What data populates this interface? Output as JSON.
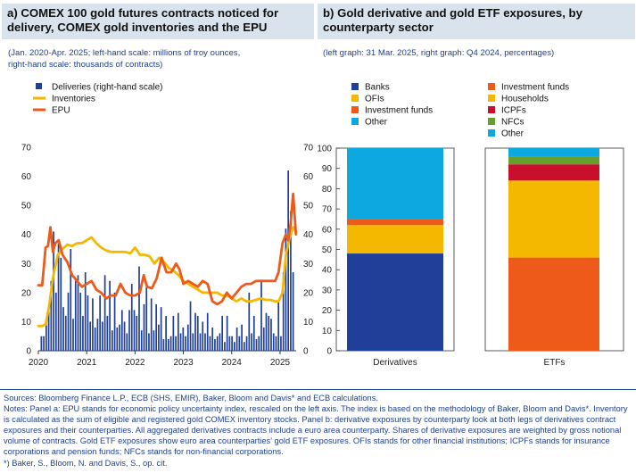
{
  "panel_a": {
    "title": "a) COMEX 100 gold futures contracts noticed for delivery, COMEX gold inventories and the EPU",
    "subtitle": "(Jan. 2020-Apr. 2025; left-hand scale: millions of troy ounces,\nright-hand scale: thousands of contracts)"
  },
  "panel_b": {
    "title": "b) Gold derivative and gold ETF exposures, by counterparty sector",
    "subtitle": "(left graph: 31 Mar. 2025, right graph: Q4 2024, percentages)"
  },
  "footer": {
    "sources": "Sources: Bloomberg Finance L.P., ECB (SHS, EMIR), Baker, Bloom and Davis* and ECB calculations.",
    "notes": "Notes: Panel a: EPU stands for economic policy uncertainty index, rescaled on the left axis. The index is based on the methodology of Baker, Bloom and Davis*. Inventory is calculated as the sum of eligible and registered gold COMEX inventory stocks. Panel b: derivative exposures by counterparty look at both legs of derivatives contract exposures and their counterparties. All aggregated derivatives contracts include a euro area counterparty. Shares of derivative exposures are weighted by gross notional volume of contracts. Gold ETF exposures show euro area counterparties' gold ETF exposures. OFIs stands for other financial institutions; ICPFs stands for insurance corporations and pension funds; NFCs stands for non-financial corporations.",
    "reference": "*) Baker, S., Bloom, N. and Davis, S., op. cit."
  },
  "chart_data": [
    {
      "type": "bar+line",
      "x_ticks": [
        "2020",
        "2021",
        "2022",
        "2023",
        "2024",
        "2025"
      ],
      "x_range": [
        2020.0,
        2025.333
      ],
      "ylim_left": [
        0,
        70
      ],
      "ylim_right": [
        0,
        70
      ],
      "y_ticks": [
        0,
        10,
        20,
        30,
        40,
        50,
        60,
        70
      ],
      "legend_position": "top-left",
      "colors": {
        "deliveries": "#1f3f99",
        "inventories": "#f5b800",
        "epu": "#ee5a1a"
      },
      "series": [
        {
          "name": "Deliveries (right-hand scale)",
          "kind": "bar",
          "axis": "right",
          "values": [
            5,
            5,
            10,
            14,
            24,
            41,
            20,
            37,
            32,
            15,
            12,
            20,
            35,
            11,
            24,
            26,
            20,
            12,
            27,
            19,
            10,
            18,
            8,
            11,
            19,
            10,
            26,
            12,
            24,
            7,
            20,
            8,
            9,
            14,
            10,
            6,
            14,
            23,
            14,
            12,
            29,
            7,
            16,
            22,
            6,
            18,
            7,
            16,
            9,
            15,
            4,
            12,
            4,
            5,
            12,
            5,
            13,
            6,
            8,
            5,
            9,
            17,
            6,
            13,
            12,
            6,
            10,
            6,
            13,
            5,
            8,
            4,
            5,
            6,
            12,
            3,
            12,
            5,
            5,
            3,
            8,
            5,
            9,
            3,
            5,
            20,
            6,
            12,
            4,
            5,
            24,
            8,
            13,
            12,
            11,
            6,
            5,
            17,
            5,
            27,
            42,
            62,
            48,
            27
          ]
        },
        {
          "name": "Inventories",
          "kind": "line",
          "axis": "left",
          "x": [
            2020.0,
            2020.08,
            2020.15,
            2020.22,
            2020.3,
            2020.4,
            2020.5,
            2020.6,
            2020.7,
            2020.8,
            2020.9,
            2021.0,
            2021.1,
            2021.2,
            2021.3,
            2021.4,
            2021.5,
            2021.6,
            2021.7,
            2021.8,
            2021.9,
            2022.0,
            2022.1,
            2022.2,
            2022.3,
            2022.4,
            2022.5,
            2022.6,
            2022.7,
            2022.8,
            2022.9,
            2023.0,
            2023.1,
            2023.2,
            2023.3,
            2023.4,
            2023.5,
            2023.6,
            2023.7,
            2023.8,
            2023.9,
            2024.0,
            2024.1,
            2024.2,
            2024.3,
            2024.4,
            2024.5,
            2024.6,
            2024.7,
            2024.8,
            2024.9,
            2024.97,
            2025.05,
            2025.12,
            2025.2,
            2025.27,
            2025.33
          ],
          "values": [
            8.5,
            8.5,
            9,
            15,
            25,
            33,
            35,
            36.5,
            36,
            37,
            37,
            38,
            39,
            37,
            35.5,
            34.5,
            34,
            34,
            34,
            34,
            33.5,
            35.5,
            33,
            33,
            32.5,
            30,
            32,
            30.5,
            28.5,
            27.5,
            26,
            24,
            23,
            22,
            21,
            20,
            20,
            20,
            20,
            19,
            19,
            18,
            17,
            18,
            17,
            17,
            17.5,
            18,
            17.5,
            17.5,
            17,
            17,
            20,
            33,
            39,
            42.5,
            41
          ]
        },
        {
          "name": "EPU",
          "kind": "line",
          "axis": "left",
          "x": [
            2020.0,
            2020.08,
            2020.15,
            2020.2,
            2020.25,
            2020.3,
            2020.35,
            2020.42,
            2020.5,
            2020.6,
            2020.7,
            2020.8,
            2020.9,
            2021.0,
            2021.1,
            2021.2,
            2021.3,
            2021.4,
            2021.5,
            2021.6,
            2021.7,
            2021.8,
            2021.9,
            2022.0,
            2022.1,
            2022.18,
            2022.25,
            2022.35,
            2022.45,
            2022.55,
            2022.65,
            2022.75,
            2022.85,
            2022.92,
            2023.0,
            2023.1,
            2023.2,
            2023.3,
            2023.4,
            2023.5,
            2023.6,
            2023.7,
            2023.8,
            2023.9,
            2024.0,
            2024.1,
            2024.2,
            2024.3,
            2024.4,
            2024.5,
            2024.6,
            2024.7,
            2024.8,
            2024.9,
            2024.97,
            2025.05,
            2025.12,
            2025.17,
            2025.22,
            2025.27,
            2025.33
          ],
          "values": [
            22.5,
            22.5,
            35.5,
            36,
            42.5,
            34,
            37,
            38,
            33,
            30.5,
            26,
            24,
            22,
            23,
            24,
            21,
            20,
            18,
            19,
            19,
            23,
            20,
            19,
            19,
            20,
            26,
            22,
            21.5,
            25,
            32,
            27,
            27,
            30,
            28,
            23,
            24,
            23,
            22,
            24,
            23,
            17,
            16,
            17,
            20,
            18,
            20,
            22,
            23,
            23,
            24,
            24,
            24,
            24,
            24,
            27,
            37,
            40,
            38,
            44,
            54,
            40
          ]
        }
      ]
    },
    {
      "type": "stacked-bar",
      "categories": [
        "Derivatives",
        "ETFs"
      ],
      "ylim": [
        0,
        100
      ],
      "y_ticks": [
        0,
        10,
        20,
        30,
        40,
        50,
        60,
        70,
        80,
        90,
        100
      ],
      "series": [
        {
          "name": "Banks",
          "color": "#1f3f99",
          "values": [
            48,
            0
          ]
        },
        {
          "name": "OFIs",
          "color": "#f5b800",
          "values": [
            14,
            0
          ]
        },
        {
          "name": "Investment funds",
          "color": "#ee5a1a",
          "values": [
            3,
            46
          ]
        },
        {
          "name": "Households",
          "color": "#f5b800",
          "values": [
            0,
            38
          ]
        },
        {
          "name": "ICPFs",
          "color": "#c8102e",
          "values": [
            0,
            8
          ]
        },
        {
          "name": "NFCs",
          "color": "#66a02c",
          "values": [
            0,
            4
          ]
        },
        {
          "name": "Other",
          "color": "#0ea8e0",
          "values": [
            35,
            4
          ]
        }
      ],
      "legend_left": [
        "Banks",
        "OFIs",
        "Investment funds",
        "Other"
      ],
      "legend_right": [
        "Investment funds",
        "Households",
        "ICPFs",
        "NFCs",
        "Other"
      ]
    }
  ]
}
